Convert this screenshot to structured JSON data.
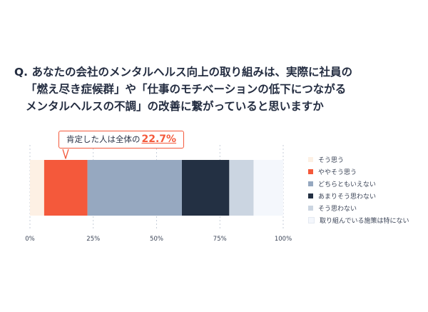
{
  "question": {
    "lines": [
      "Q. あなたの会社のメンタルヘルス向上の取り組みは、実際に社員の",
      "「燃え尽き症候群」や「仕事のモチベーションの低下につながる",
      "メンタルヘルスの不調」の改善に繋がっていると思いますか"
    ]
  },
  "callout": {
    "text": "肯定した人は全体の",
    "value": "22.7%"
  },
  "chart_data": {
    "type": "bar",
    "orientation": "horizontal",
    "stacked": true,
    "title": "",
    "xlabel": "",
    "ylabel": "",
    "xlim": [
      0,
      100
    ],
    "x_ticks": [
      0,
      25,
      50,
      75,
      100
    ],
    "x_tick_labels": [
      "0%",
      "25%",
      "50%",
      "75%",
      "100%"
    ],
    "grid": "vertical dashed lines at ticks",
    "legend_position": "right",
    "series": [
      {
        "name": "そう思う",
        "value": 5.6,
        "color": "#fdf0e4"
      },
      {
        "name": "ややそう思う",
        "value": 17.1,
        "color": "#f4593b"
      },
      {
        "name": "どちらともいえない",
        "value": 37.3,
        "color": "#96a8c0"
      },
      {
        "name": "あまりそう思わない",
        "value": 18.7,
        "color": "#233043"
      },
      {
        "name": "そう思わない",
        "value": 9.6,
        "color": "#cbd5e1"
      },
      {
        "name": "取り組んでいる施策は特にない",
        "value": 11.7,
        "color": "#f4f7fc"
      }
    ]
  }
}
